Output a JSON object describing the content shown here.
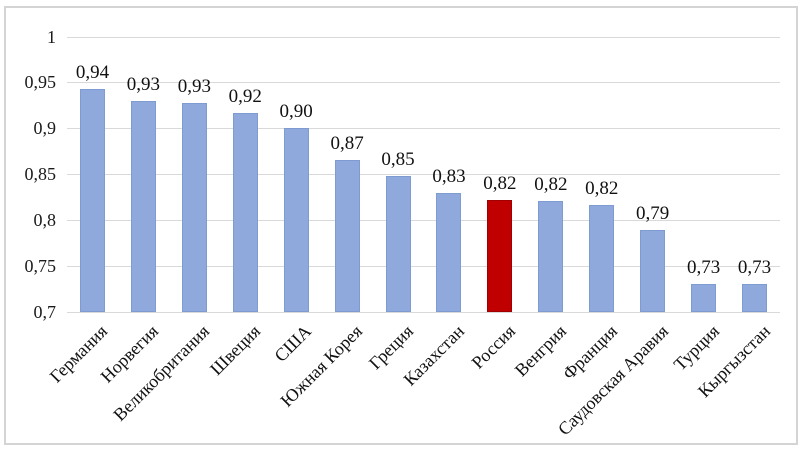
{
  "chart_data": {
    "type": "bar",
    "title": "",
    "xlabel": "",
    "ylabel": "",
    "categories": [
      "Германия",
      "Норвегия",
      "Великобритания",
      "Швеция",
      "США",
      "Южная Корея",
      "Греция",
      "Казахстан",
      "Россия",
      "Венгрия",
      "Франция",
      "Саудовская Аравия",
      "Турция",
      "Кыргызстан"
    ],
    "values": [
      0.943,
      0.93,
      0.928,
      0.917,
      0.9,
      0.865,
      0.848,
      0.83,
      0.822,
      0.821,
      0.816,
      0.789,
      0.731,
      0.73
    ],
    "value_labels": [
      "0,94",
      "0,93",
      "0,93",
      "0,92",
      "0,90",
      "0,87",
      "0,85",
      "0,83",
      "0,82",
      "0,82",
      "0,82",
      "0,79",
      "0,73",
      "0,73"
    ],
    "highlight_index": 8,
    "highlight_category": "Россия",
    "ylim": [
      0.7,
      1.0
    ],
    "ytick_step": 0.05,
    "yticks": [
      "1",
      "0,95",
      "0,9",
      "0,85",
      "0,8",
      "0,75",
      "0,7"
    ],
    "grid": true,
    "legend_position": "none",
    "colors": {
      "bar": "#8FA9DC",
      "bar_edge": "#7E9BD2",
      "highlight": "#C00000",
      "highlight_edge": "#A00000",
      "gridline": "#D9D9D9",
      "frame_border": "#D4D4D4",
      "text": "#1A1A1A",
      "background": "#FFFFFF"
    }
  }
}
